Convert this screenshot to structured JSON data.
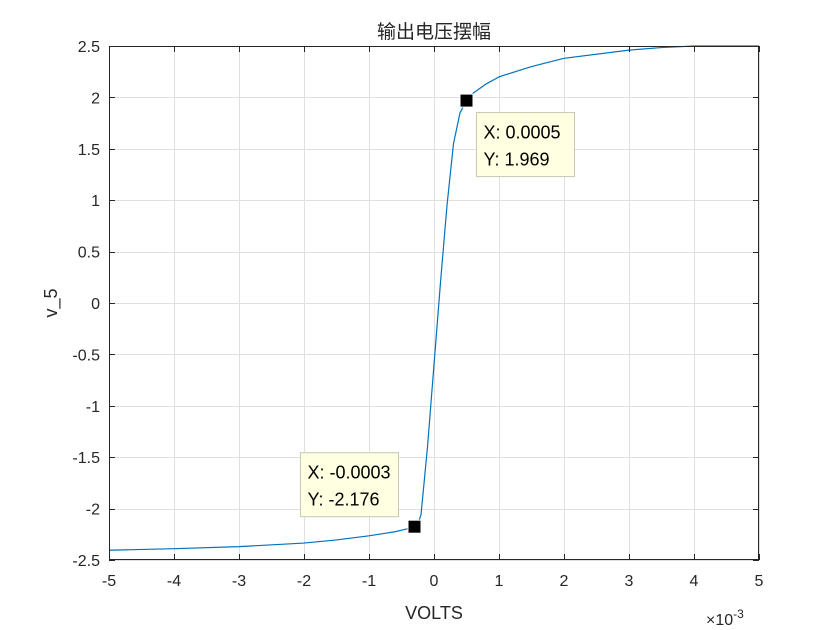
{
  "chart_data": {
    "type": "line",
    "title": "输出电压摆幅",
    "xlabel": "VOLTS",
    "ylabel": "v_5",
    "x_exponent_label": "10",
    "x_exponent_power": "-3",
    "x_exponent_times": "×",
    "xlim": [
      -5,
      5
    ],
    "ylim": [
      -2.5,
      2.5
    ],
    "x_ticks": [
      -5,
      -4,
      -3,
      -2,
      -1,
      0,
      1,
      2,
      3,
      4,
      5
    ],
    "x_tick_labels": [
      "-5",
      "-4",
      "-3",
      "-2",
      "-1",
      "0",
      "1",
      "2",
      "3",
      "4",
      "5"
    ],
    "y_ticks": [
      -2.5,
      -2,
      -1.5,
      -1,
      -0.5,
      0,
      0.5,
      1,
      1.5,
      2,
      2.5
    ],
    "y_tick_labels": [
      "-2.5",
      "-2",
      "-1.5",
      "-1",
      "-0.5",
      "0",
      "0.5",
      "1",
      "1.5",
      "2",
      "2.5"
    ],
    "grid": true,
    "series": [
      {
        "color": "#0072BD",
        "x": [
          -5,
          -4,
          -3,
          -2,
          -1.5,
          -1,
          -0.8,
          -0.6,
          -0.5,
          -0.4,
          -0.35,
          -0.3,
          -0.25,
          -0.2,
          -0.1,
          0,
          0.1,
          0.2,
          0.3,
          0.4,
          0.5,
          0.6,
          0.8,
          1,
          1.5,
          2,
          3,
          3.5,
          4,
          5
        ],
        "y": [
          -2.405,
          -2.39,
          -2.37,
          -2.335,
          -2.305,
          -2.265,
          -2.245,
          -2.225,
          -2.21,
          -2.195,
          -2.185,
          -2.176,
          -2.15,
          -2.06,
          -1.4,
          -0.6,
          0.2,
          0.95,
          1.55,
          1.85,
          1.969,
          2.04,
          2.13,
          2.2,
          2.3,
          2.38,
          2.46,
          2.485,
          2.5,
          2.5
        ]
      }
    ],
    "datatips": [
      {
        "x": 0.5,
        "y": 1.969,
        "label_x": "X: 0.0005",
        "label_y": "Y: 1.969",
        "tip_side": "below-right"
      },
      {
        "x": -0.3,
        "y": -2.176,
        "label_x": "X: -0.0003",
        "label_y": "Y: -2.176",
        "tip_side": "above-left"
      }
    ]
  }
}
